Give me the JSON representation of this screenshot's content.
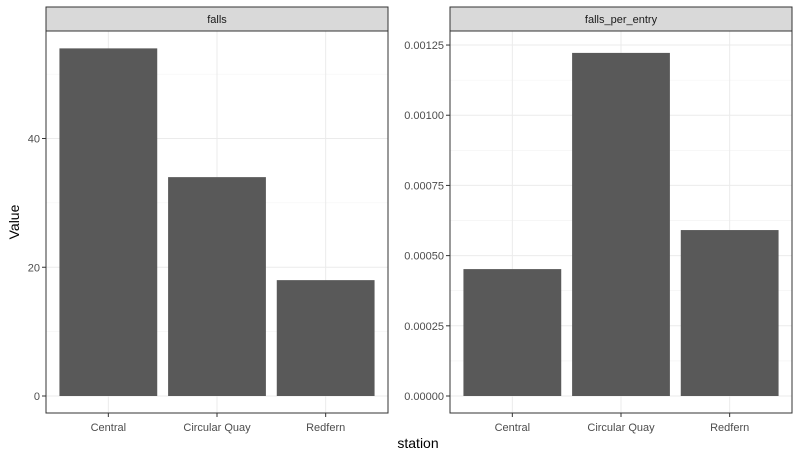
{
  "chart_data": {
    "type": "bar",
    "facet": "wrap",
    "xlabel": "station",
    "ylabel": "Value",
    "categories": [
      "Central",
      "Circular Quay",
      "Redfern"
    ],
    "bar_color": "#595959",
    "strip_color": "#d9d9d9",
    "grid": true,
    "legend": "none",
    "panels": [
      {
        "strip_label": "falls",
        "values": [
          54,
          34,
          18
        ],
        "ylim": [
          0,
          56.7
        ],
        "yticks": [
          0,
          20,
          40
        ],
        "ytick_labels": [
          "0",
          "20",
          "40"
        ]
      },
      {
        "strip_label": "falls_per_entry",
        "values": [
          0.000452,
          0.001222,
          0.000591
        ],
        "ylim": [
          0,
          0.0013
        ],
        "yticks": [
          0,
          0.00025,
          0.0005,
          0.00075,
          0.001,
          0.00125
        ],
        "ytick_labels": [
          "0.00000",
          "0.00025",
          "0.00050",
          "0.00075",
          "0.00100",
          "0.00125"
        ]
      }
    ]
  }
}
